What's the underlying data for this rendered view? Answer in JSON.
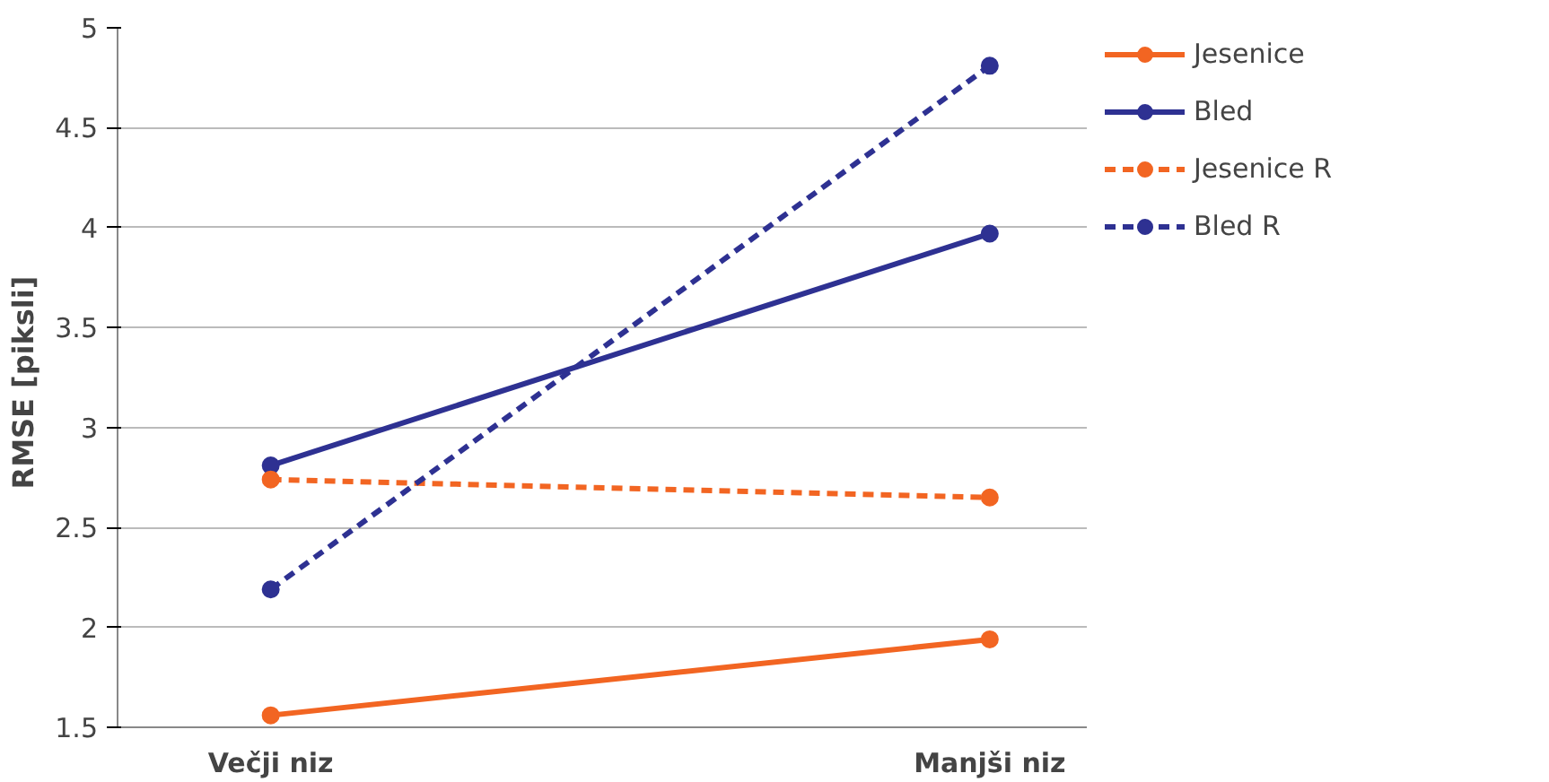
{
  "chart_data": {
    "type": "line",
    "categories": [
      "Večji niz",
      "Manjši niz"
    ],
    "ylabel": "RMSE  [piksli]",
    "ylim": [
      1.5,
      5
    ],
    "yticks": [
      1.5,
      2,
      2.5,
      3,
      3.5,
      4,
      4.5,
      5
    ],
    "grid": "y",
    "legend": "right",
    "marker": "circle",
    "series": [
      {
        "name": "Jesenice",
        "color": "#f26522",
        "values": [
          1.56,
          1.94
        ],
        "line_style": "solid"
      },
      {
        "name": "Bled",
        "color": "#2e3192",
        "values": [
          2.81,
          3.97
        ],
        "line_style": "solid"
      },
      {
        "name": "Jesenice R",
        "color": "#f26522",
        "values": [
          2.74,
          2.65
        ],
        "line_style": "dashed"
      },
      {
        "name": "Bled R",
        "color": "#2e3192",
        "values": [
          2.19,
          4.81
        ],
        "line_style": "dashed"
      }
    ]
  }
}
